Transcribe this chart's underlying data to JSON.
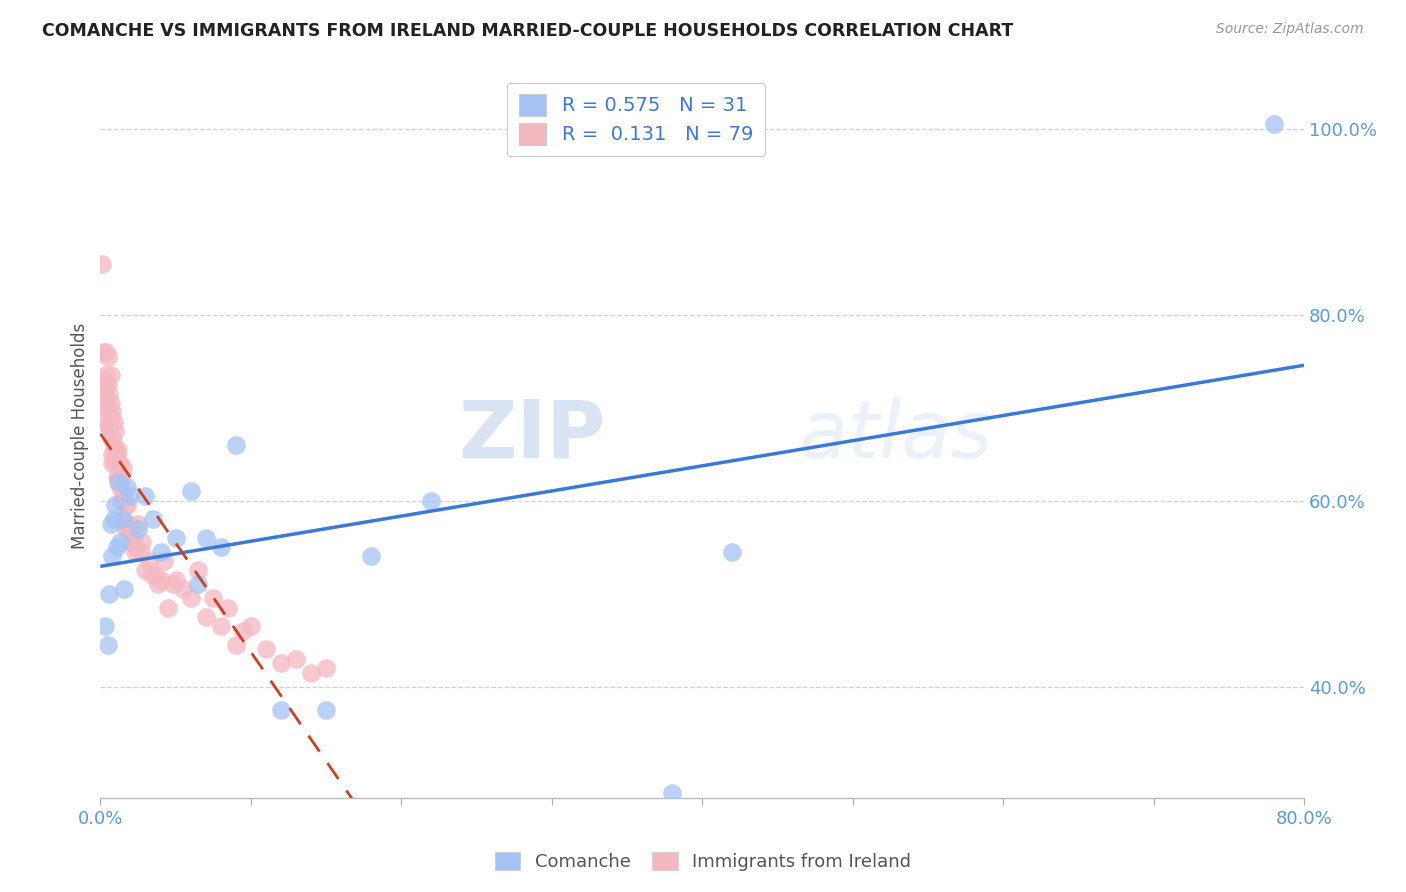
{
  "title": "COMANCHE VS IMMIGRANTS FROM IRELAND MARRIED-COUPLE HOUSEHOLDS CORRELATION CHART",
  "source": "Source: ZipAtlas.com",
  "ylabel_label": "Married-couple Households",
  "legend_label1": "Comanche",
  "legend_label2": "Immigrants from Ireland",
  "R1": 0.575,
  "N1": 31,
  "R2": 0.131,
  "N2": 79,
  "blue_color": "#a4c2f4",
  "pink_color": "#f4b8c1",
  "blue_line_color": "#3c78d8",
  "pink_line_color": "#cc4125",
  "watermark_zip": "ZIP",
  "watermark_atlas": "atlas",
  "xlim": [
    0.0,
    0.8
  ],
  "ylim": [
    0.28,
    1.06
  ],
  "yticks": [
    0.4,
    0.6,
    0.8,
    1.0
  ],
  "xticks": [
    0.0,
    0.1,
    0.2,
    0.3,
    0.4,
    0.5,
    0.6,
    0.7,
    0.8
  ],
  "comanche_x": [
    0.003,
    0.005,
    0.006,
    0.007,
    0.008,
    0.009,
    0.01,
    0.011,
    0.012,
    0.013,
    0.015,
    0.016,
    0.018,
    0.02,
    0.025,
    0.03,
    0.035,
    0.04,
    0.05,
    0.06,
    0.065,
    0.07,
    0.08,
    0.09,
    0.12,
    0.15,
    0.18,
    0.22,
    0.38,
    0.42,
    0.78
  ],
  "comanche_y": [
    0.465,
    0.445,
    0.5,
    0.575,
    0.54,
    0.58,
    0.595,
    0.55,
    0.62,
    0.555,
    0.58,
    0.505,
    0.615,
    0.605,
    0.57,
    0.605,
    0.58,
    0.545,
    0.56,
    0.61,
    0.51,
    0.56,
    0.55,
    0.66,
    0.375,
    0.375,
    0.54,
    0.6,
    0.285,
    0.545,
    1.005
  ],
  "ireland_x": [
    0.001,
    0.002,
    0.002,
    0.003,
    0.003,
    0.003,
    0.004,
    0.004,
    0.004,
    0.005,
    0.005,
    0.005,
    0.005,
    0.006,
    0.006,
    0.006,
    0.007,
    0.007,
    0.007,
    0.007,
    0.008,
    0.008,
    0.008,
    0.008,
    0.009,
    0.009,
    0.009,
    0.01,
    0.01,
    0.01,
    0.011,
    0.011,
    0.011,
    0.012,
    0.012,
    0.013,
    0.013,
    0.014,
    0.014,
    0.015,
    0.015,
    0.016,
    0.017,
    0.017,
    0.018,
    0.019,
    0.02,
    0.021,
    0.022,
    0.023,
    0.024,
    0.025,
    0.027,
    0.028,
    0.03,
    0.032,
    0.034,
    0.036,
    0.038,
    0.04,
    0.042,
    0.045,
    0.048,
    0.05,
    0.055,
    0.06,
    0.065,
    0.07,
    0.075,
    0.08,
    0.085,
    0.09,
    0.095,
    0.1,
    0.11,
    0.12,
    0.13,
    0.14,
    0.15
  ],
  "ireland_y": [
    0.855,
    0.73,
    0.76,
    0.72,
    0.69,
    0.715,
    0.705,
    0.735,
    0.76,
    0.68,
    0.725,
    0.755,
    0.7,
    0.68,
    0.715,
    0.68,
    0.69,
    0.735,
    0.705,
    0.67,
    0.65,
    0.695,
    0.665,
    0.64,
    0.66,
    0.685,
    0.645,
    0.655,
    0.675,
    0.64,
    0.65,
    0.625,
    0.645,
    0.655,
    0.625,
    0.64,
    0.615,
    0.62,
    0.6,
    0.635,
    0.605,
    0.575,
    0.595,
    0.57,
    0.595,
    0.575,
    0.565,
    0.555,
    0.56,
    0.545,
    0.55,
    0.575,
    0.545,
    0.555,
    0.525,
    0.535,
    0.52,
    0.52,
    0.51,
    0.515,
    0.535,
    0.485,
    0.51,
    0.515,
    0.505,
    0.495,
    0.525,
    0.475,
    0.495,
    0.465,
    0.485,
    0.445,
    0.46,
    0.465,
    0.44,
    0.425,
    0.43,
    0.415,
    0.42
  ]
}
